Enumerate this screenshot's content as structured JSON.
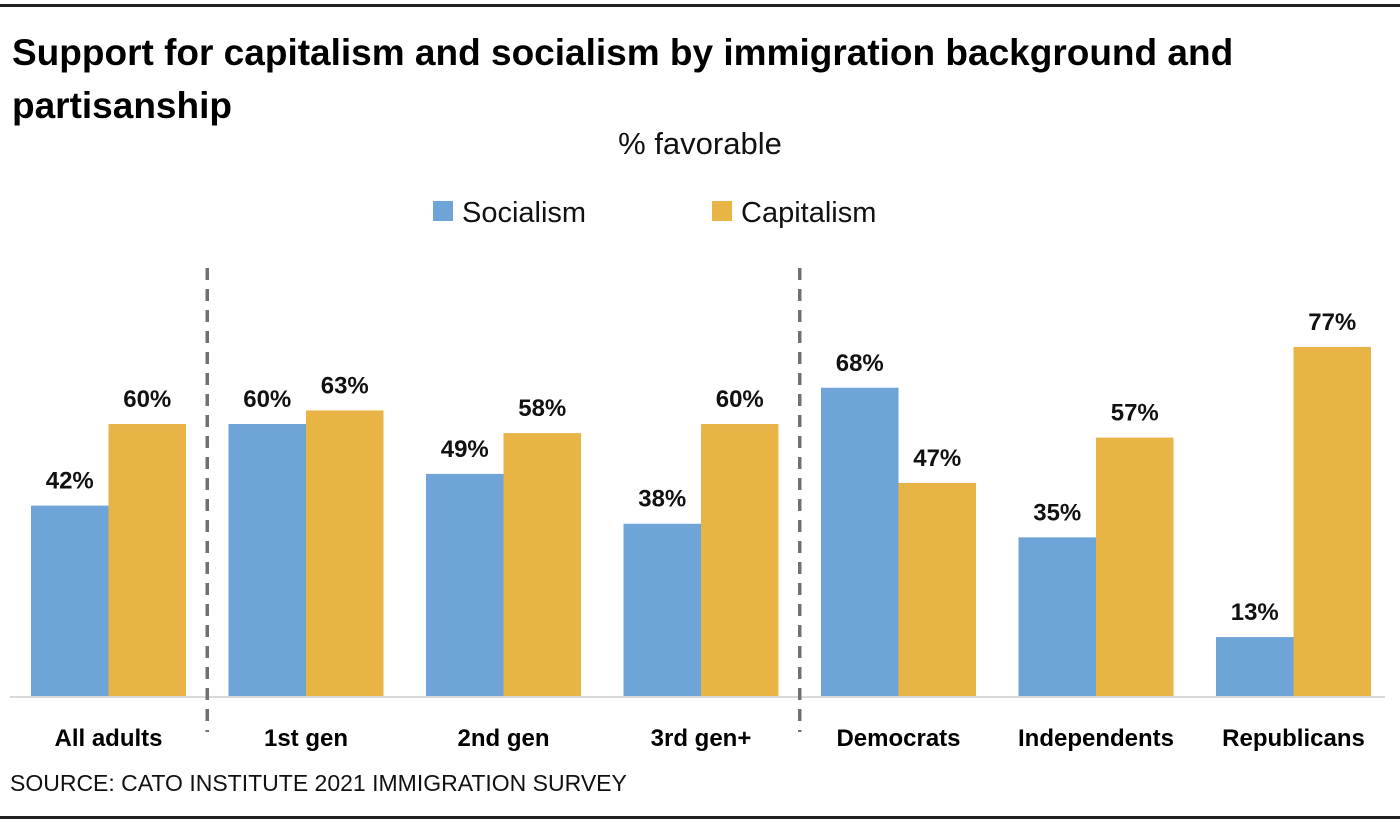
{
  "chart_data": {
    "type": "bar",
    "title": "Support for capitalism and socialism by immigration background and partisanship",
    "subtitle": "% favorable",
    "categories": [
      "All adults",
      "1st gen",
      "2nd gen",
      "3rd gen+",
      "Democrats",
      "Independents",
      "Republicans"
    ],
    "series": [
      {
        "name": "Socialism",
        "values": [
          42,
          60,
          49,
          38,
          68,
          35,
          13
        ],
        "color": "#6fa4d8"
      },
      {
        "name": "Capitalism",
        "values": [
          60,
          63,
          58,
          60,
          47,
          57,
          77
        ],
        "color": "#e8b445"
      }
    ],
    "value_format": "{v}%",
    "ylim": [
      0,
      80
    ],
    "grid": false,
    "legend_placement": "top-center",
    "group_dividers_after": [
      "All adults",
      "3rd gen+"
    ],
    "source": "SOURCE: CATO INSTITUTE 2021 IMMIGRATION SURVEY"
  }
}
